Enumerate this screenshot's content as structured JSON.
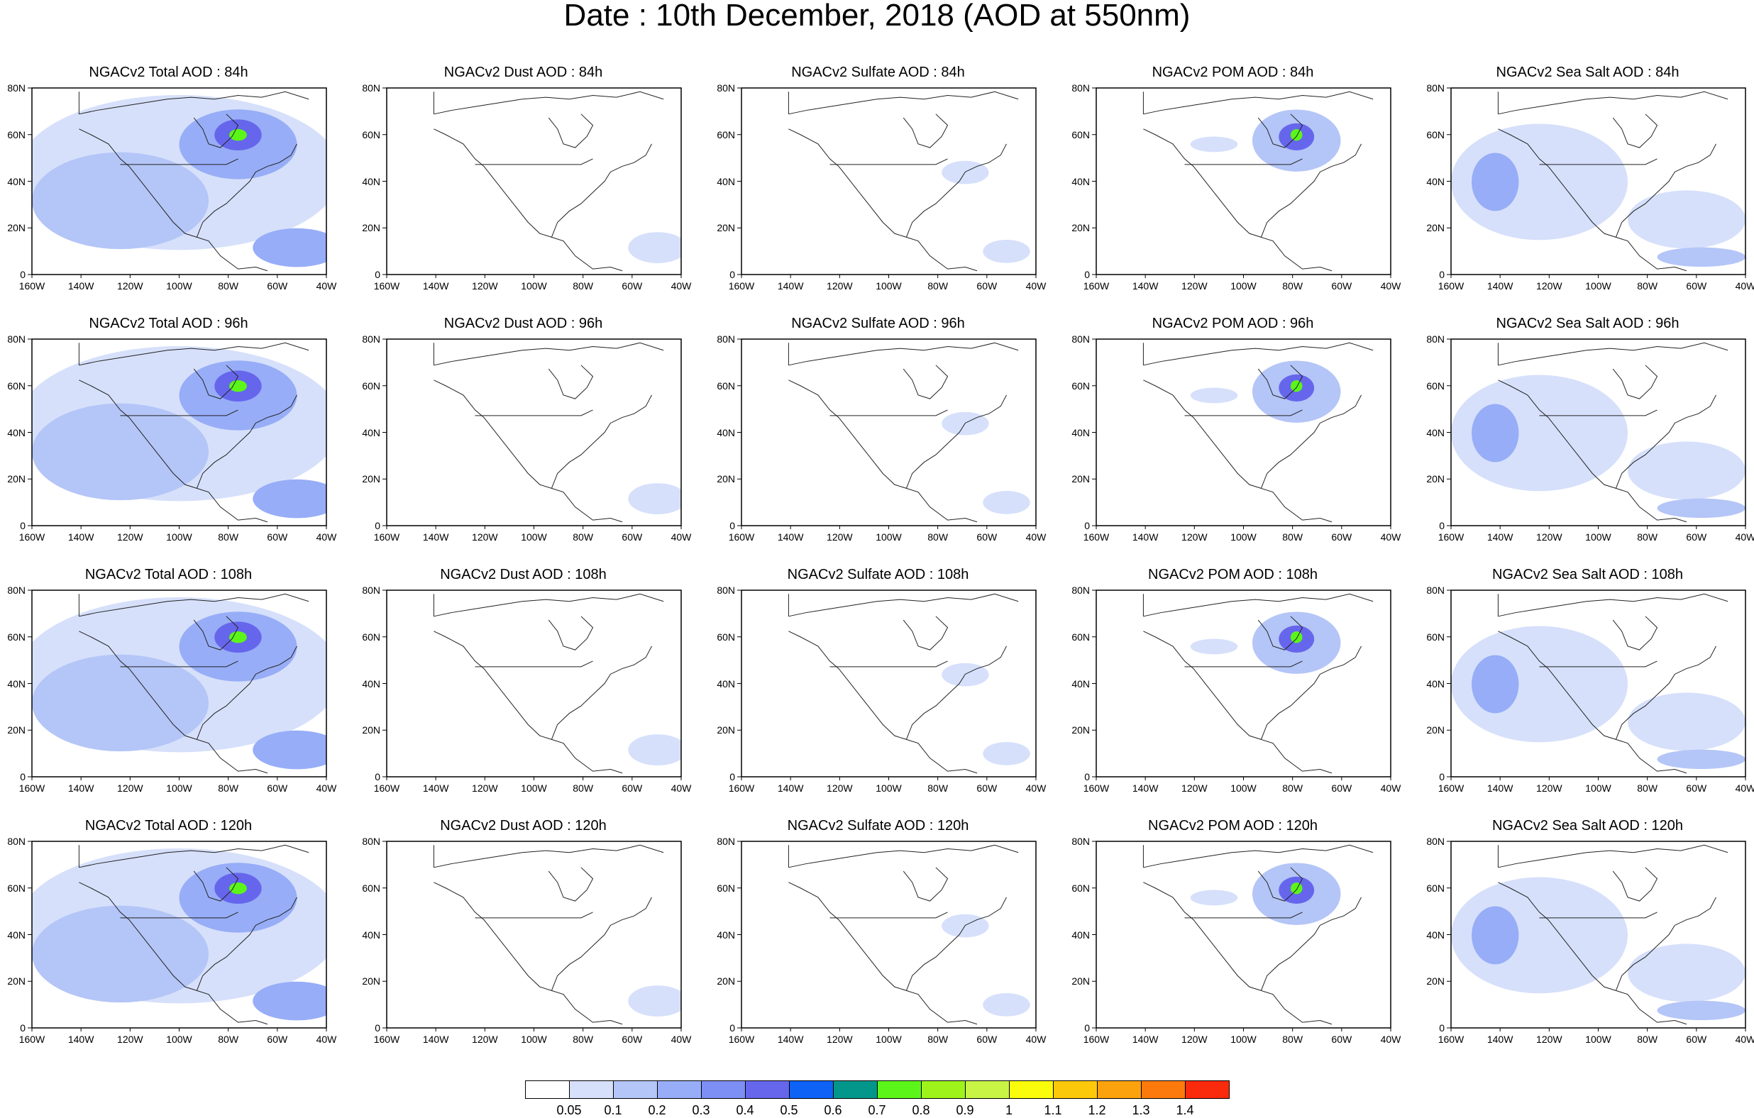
{
  "title": "Date : 10th December, 2018 (AOD at 550nm)",
  "panels": [
    {
      "title": "NGACv2 Total AOD : 84h",
      "species": "total",
      "hour": 84
    },
    {
      "title": "NGACv2 Dust AOD : 84h",
      "species": "dust",
      "hour": 84
    },
    {
      "title": "NGACv2 Sulfate AOD : 84h",
      "species": "sulfate",
      "hour": 84
    },
    {
      "title": "NGACv2 POM AOD : 84h",
      "species": "pom",
      "hour": 84
    },
    {
      "title": "NGACv2 Sea Salt AOD : 84h",
      "species": "seasalt",
      "hour": 84
    },
    {
      "title": "NGACv2 Total AOD : 96h",
      "species": "total",
      "hour": 96
    },
    {
      "title": "NGACv2 Dust AOD : 96h",
      "species": "dust",
      "hour": 96
    },
    {
      "title": "NGACv2 Sulfate AOD : 96h",
      "species": "sulfate",
      "hour": 96
    },
    {
      "title": "NGACv2 POM AOD : 96h",
      "species": "pom",
      "hour": 96
    },
    {
      "title": "NGACv2 Sea Salt AOD : 96h",
      "species": "seasalt",
      "hour": 96
    },
    {
      "title": "NGACv2 Total AOD : 108h",
      "species": "total",
      "hour": 108
    },
    {
      "title": "NGACv2 Dust AOD : 108h",
      "species": "dust",
      "hour": 108
    },
    {
      "title": "NGACv2 Sulfate AOD : 108h",
      "species": "sulfate",
      "hour": 108
    },
    {
      "title": "NGACv2 POM AOD : 108h",
      "species": "pom",
      "hour": 108
    },
    {
      "title": "NGACv2 Sea Salt AOD : 108h",
      "species": "seasalt",
      "hour": 108
    },
    {
      "title": "NGACv2 Total AOD : 120h",
      "species": "total",
      "hour": 120
    },
    {
      "title": "NGACv2 Dust AOD : 120h",
      "species": "dust",
      "hour": 120
    },
    {
      "title": "NGACv2 Sulfate AOD : 120h",
      "species": "sulfate",
      "hour": 120
    },
    {
      "title": "NGACv2 POM AOD : 120h",
      "species": "pom",
      "hour": 120
    },
    {
      "title": "NGACv2 Sea Salt  AOD : 120h",
      "species": "seasalt",
      "hour": 120
    }
  ],
  "lat_labels": [
    "80N",
    "60N",
    "40N",
    "20N",
    "0"
  ],
  "lon_labels": [
    "160W",
    "140W",
    "120W",
    "100W",
    "80W",
    "60W",
    "40W"
  ],
  "colorbar": {
    "colors": [
      "#ffffff",
      "#d6e0fb",
      "#b4c5f7",
      "#97adf7",
      "#7d8ff5",
      "#6666ec",
      "#0e62f6",
      "#03968a",
      "#5cf51a",
      "#9ef41a",
      "#c8f446",
      "#fbfb0c",
      "#fcc90a",
      "#fca20c",
      "#fc7a0c",
      "#fa2a0c"
    ],
    "labels": [
      "0.05",
      "0.1",
      "0.2",
      "0.3",
      "0.4",
      "0.5",
      "0.6",
      "0.7",
      "0.8",
      "0.9",
      "1",
      "1.1",
      "1.2",
      "1.3",
      "1.4"
    ]
  }
}
